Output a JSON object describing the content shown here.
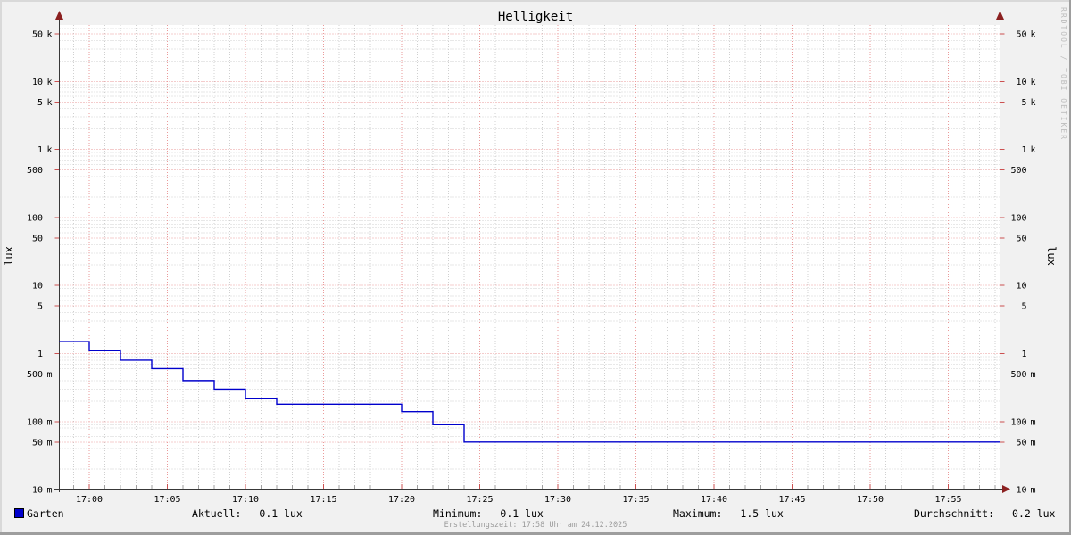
{
  "title": "Helligkeit",
  "y_axis_label_left": "lux",
  "y_axis_label_right": "lux",
  "watermark": "RRDTOOL / TOBI OETIKER",
  "legend": {
    "series_label": "Garten",
    "swatch_color": "#0000cc"
  },
  "stats": [
    {
      "label": "Aktuell:",
      "value": "0.1 lux"
    },
    {
      "label": "Minimum:",
      "value": "0.1 lux"
    },
    {
      "label": "Maximum:",
      "value": "1.5 lux"
    },
    {
      "label": "Durchschnitt:",
      "value": "0.2 lux"
    }
  ],
  "footer": "Erstellungszeit: 17:58 Uhr am 24.12.2025",
  "colors": {
    "background": "#f1f1f1",
    "canvas": "#ffffff",
    "grid_major": "#ea9a9a",
    "grid_minor": "#d0d0d0",
    "tick_major": "#cc5050",
    "tick_minor": "#a0a0a0",
    "axis": "#383838",
    "arrow": "#8b2020",
    "series_line": "#0000cc",
    "text": "#000000",
    "footer_text": "#9b9b9b",
    "watermark_text": "#bcbcbc",
    "border_light": "#d9d9d9",
    "border_dark": "#9e9e9e"
  },
  "chart_data": {
    "type": "line",
    "line_style": "step",
    "y_scale": "logarithmic",
    "title": "Helligkeit",
    "ylabel": "lux",
    "x_range": [
      "16:58",
      "17:58"
    ],
    "ylim_lux": [
      0.01,
      70000
    ],
    "grid": true,
    "legend_position": "bottom",
    "x_ticks": [
      "17:00",
      "17:05",
      "17:10",
      "17:15",
      "17:20",
      "17:25",
      "17:30",
      "17:35",
      "17:40",
      "17:45",
      "17:50",
      "17:55"
    ],
    "y_ticks": [
      {
        "lux": 50000,
        "num": "50",
        "unit": "k"
      },
      {
        "lux": 10000,
        "num": "10",
        "unit": "k"
      },
      {
        "lux": 5000,
        "num": "5",
        "unit": "k"
      },
      {
        "lux": 1000,
        "num": "1",
        "unit": "k"
      },
      {
        "lux": 500,
        "num": "500",
        "unit": ""
      },
      {
        "lux": 100,
        "num": "100",
        "unit": ""
      },
      {
        "lux": 50,
        "num": "50",
        "unit": ""
      },
      {
        "lux": 10,
        "num": "10",
        "unit": ""
      },
      {
        "lux": 5,
        "num": "5",
        "unit": ""
      },
      {
        "lux": 1,
        "num": "1",
        "unit": ""
      },
      {
        "lux": 0.5,
        "num": "500",
        "unit": "m"
      },
      {
        "lux": 0.1,
        "num": "100",
        "unit": "m"
      },
      {
        "lux": 0.05,
        "num": "50",
        "unit": "m"
      },
      {
        "lux": 0.01,
        "num": "10",
        "unit": "m"
      }
    ],
    "series": [
      {
        "name": "Garten",
        "unit": "lux",
        "color": "#0000cc",
        "steps": [
          {
            "from": "16:58",
            "to": "17:00",
            "lux": 1.5
          },
          {
            "from": "17:00",
            "to": "17:02",
            "lux": 1.1
          },
          {
            "from": "17:02",
            "to": "17:04",
            "lux": 0.8
          },
          {
            "from": "17:04",
            "to": "17:06",
            "lux": 0.6
          },
          {
            "from": "17:06",
            "to": "17:08",
            "lux": 0.4
          },
          {
            "from": "17:08",
            "to": "17:10",
            "lux": 0.3
          },
          {
            "from": "17:10",
            "to": "17:12",
            "lux": 0.22
          },
          {
            "from": "17:12",
            "to": "17:20",
            "lux": 0.18
          },
          {
            "from": "17:20",
            "to": "17:22",
            "lux": 0.14
          },
          {
            "from": "17:22",
            "to": "17:24",
            "lux": 0.09
          },
          {
            "from": "17:24",
            "to": "17:58",
            "lux": 0.05
          }
        ]
      }
    ]
  }
}
